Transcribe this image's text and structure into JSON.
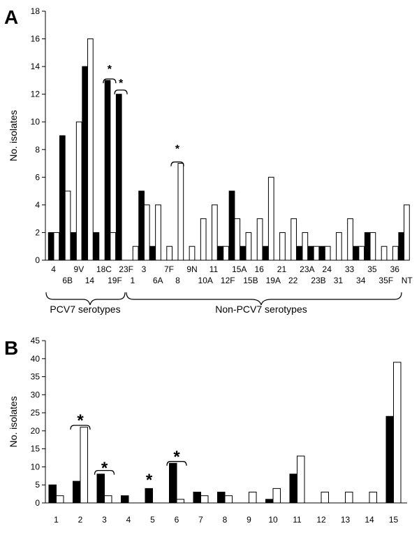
{
  "chart_data": [
    {
      "panel": "A",
      "type": "bar",
      "ylabel": "No. isolates",
      "ylim": [
        0,
        18
      ],
      "yticks": [
        0,
        2,
        4,
        6,
        8,
        10,
        12,
        14,
        16,
        18
      ],
      "categories": [
        "4",
        "6B",
        "9V",
        "14",
        "18C",
        "19F",
        "23F",
        "1",
        "3",
        "6A",
        "7F",
        "8",
        "9N",
        "10A",
        "11",
        "12F",
        "15A",
        "15B",
        "16",
        "19A",
        "21",
        "22",
        "23A",
        "23B",
        "24",
        "31",
        "33",
        "34",
        "35",
        "35F",
        "36",
        "NT"
      ],
      "series": [
        {
          "fill": "#000000",
          "values": [
            2,
            9,
            2,
            14,
            2,
            13,
            12,
            0,
            5,
            1,
            0,
            0,
            0,
            0,
            0,
            1,
            5,
            1,
            0,
            1,
            0,
            0,
            1,
            1,
            1,
            0,
            0,
            1,
            2,
            0,
            0,
            2
          ]
        },
        {
          "fill": "#ffffff",
          "values": [
            2,
            5,
            10,
            16,
            0,
            2,
            0,
            1,
            4,
            4,
            1,
            7,
            1,
            3,
            4,
            1,
            3,
            2,
            3,
            6,
            2,
            3,
            2,
            1,
            1,
            2,
            3,
            1,
            2,
            1,
            1,
            4
          ]
        }
      ],
      "groups": [
        {
          "label": "PCV7 serotypes"
        },
        {
          "label": "Non-PCV7 serotypes"
        }
      ],
      "annotations": [
        "*",
        "*",
        "*"
      ]
    },
    {
      "panel": "B",
      "type": "bar",
      "ylabel": "No. isolates",
      "ylim": [
        0,
        45
      ],
      "yticks": [
        0,
        5,
        10,
        15,
        20,
        25,
        30,
        35,
        40,
        45
      ],
      "categories": [
        "1",
        "2",
        "3",
        "4",
        "5",
        "6",
        "7",
        "8",
        "9",
        "10",
        "11",
        "12",
        "13",
        "14",
        "15"
      ],
      "series": [
        {
          "fill": "#000000",
          "values": [
            5,
            6,
            8,
            2,
            4,
            11,
            3,
            3,
            0,
            1,
            8,
            0,
            0,
            0,
            24
          ]
        },
        {
          "fill": "#ffffff",
          "values": [
            2,
            21,
            2,
            0,
            0,
            1,
            2,
            2,
            3,
            4,
            13,
            3,
            3,
            3,
            39
          ]
        }
      ],
      "annotations": [
        "*",
        "*",
        "*",
        "*"
      ]
    }
  ]
}
